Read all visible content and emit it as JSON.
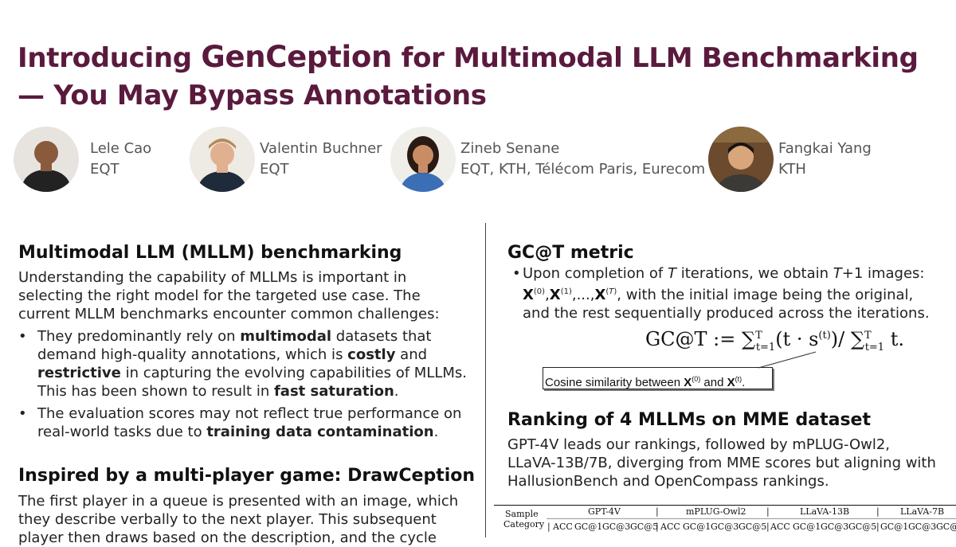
{
  "title": {
    "part1": "Introducing ",
    "brand": "GenCeption",
    "part2": " for Multimodal LLM Benchmarking",
    "part3": "— You May Bypass Annotations"
  },
  "authors": [
    {
      "name": "Lele Cao",
      "affiliation": "EQT"
    },
    {
      "name": "Valentin Buchner",
      "affiliation": "EQT"
    },
    {
      "name": "Zineb Senane",
      "affiliation": "EQT, KTH, Télécom Paris, Eurecom"
    },
    {
      "name": "Fangkai Yang",
      "affiliation": "KTH"
    }
  ],
  "left": {
    "section1": {
      "heading": "Multimodal LLM (MLLM) benchmarking",
      "intro": "Understanding the capability of MLLMs is important in selecting the right model for the targeted use case. The current MLLM benchmarks encounter common challenges:",
      "bullet1": {
        "t1": "They predominantly rely on ",
        "b1": "multimodal",
        "t2": " datasets that demand high-quality annotations, which is ",
        "b2": "costly",
        "t3": " and ",
        "b3": "restrictive",
        "t4": " in capturing the evolving capabilities of MLLMs. This has been shown to result in ",
        "b4": "fast saturation",
        "t5": "."
      },
      "bullet2": {
        "t1": "The evaluation scores may not reflect true performance on real-world tasks due to ",
        "b1": "training data contamination",
        "t2": "."
      }
    },
    "section2": {
      "heading": "Inspired by a multi-player game: DrawCeption",
      "text": "The first player in a queue is presented with an image, which they describe verbally to the next player. This subsequent player then draws based on the description, and the cycle"
    }
  },
  "right": {
    "section1": {
      "heading": "GC@T metric",
      "b_t1": "Upon completion of ",
      "b_T": "T",
      "b_t2": " iterations, we obtain ",
      "b_T1": "T",
      "b_t3": "+1 images:",
      "seq_tail": ", with the initial image being the original, and the rest sequentially produced across the iterations.",
      "formula": {
        "lhs": "GC@T := ",
        "sum": "∑",
        "sub": "t=1",
        "sup": "T",
        "mid": "(t · s",
        "supt": "(t)",
        "close": ")/ ",
        "tail": " t."
      },
      "annotation": {
        "t1": "Cosine similarity between ",
        "X": "X",
        "s0": "(0)",
        "t2": " and ",
        "st": "(t)",
        "t3": "."
      }
    },
    "section2": {
      "heading": "Ranking of 4 MLLMs on MME dataset",
      "text": "GPT-4V leads our rankings, followed by mPLUG-Owl2, LLaVA-13B/7B, diverging from MME scores but aligning with HallusionBench and OpenCompass rankings."
    },
    "table": {
      "row_label_1": "Sample",
      "row_label_2": "Category",
      "models": [
        "GPT-4V",
        "mPLUG-Owl2",
        "LLaVA-13B",
        "LLaVA-7B"
      ],
      "cols": [
        "ACC",
        "GC@1",
        "GC@3",
        "GC@5"
      ]
    }
  },
  "colors": {
    "title": "#5a1a3d"
  },
  "icons": [
    "author-photo-icon"
  ]
}
